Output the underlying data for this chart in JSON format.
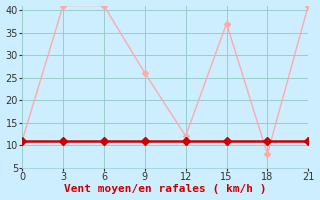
{
  "xlabel": "Vent moyen/en rafales ( km/h )",
  "background_color": "#cceeff",
  "grid_color": "#99cccc",
  "x_moyen": [
    0,
    3,
    6,
    9,
    12,
    15,
    18,
    21
  ],
  "y_moyen": [
    11,
    11,
    11,
    11,
    11,
    11,
    11,
    11
  ],
  "x_rafales": [
    0,
    3,
    6,
    9,
    12,
    15,
    18,
    21
  ],
  "y_rafales": [
    11,
    41,
    41,
    26,
    12,
    37,
    8,
    41
  ],
  "color_moyen": "#cc0000",
  "color_rafales": "#ffaaaa",
  "marker_moyen": 4,
  "marker_rafales": 3,
  "xlim": [
    0,
    21
  ],
  "ylim": [
    5,
    41
  ],
  "yticks": [
    5,
    10,
    15,
    20,
    25,
    30,
    35,
    40
  ],
  "xticks": [
    0,
    3,
    6,
    9,
    12,
    15,
    18,
    21
  ],
  "xlabel_color": "#cc0000",
  "xlabel_fontsize": 8,
  "tick_fontsize": 7,
  "linewidth_moyen": 1.8,
  "linewidth_rafales": 1.0
}
